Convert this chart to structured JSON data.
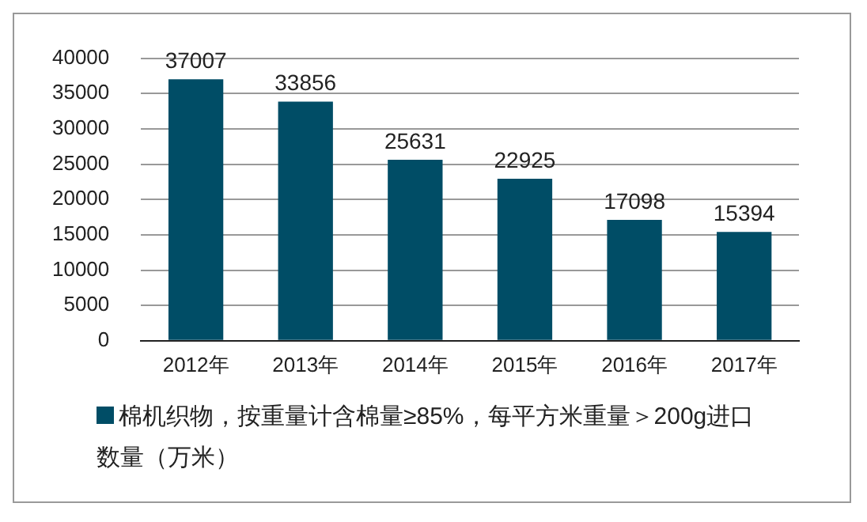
{
  "chart_data": {
    "type": "bar",
    "categories": [
      "2012年",
      "2013年",
      "2014年",
      "2015年",
      "2016年",
      "2017年"
    ],
    "series": [
      {
        "name": "棉机织物，按重量计含棉量≥85%，每平方米重量＞200g进口数量（万米）",
        "color": "#004d66",
        "values": [
          37007,
          33856,
          25631,
          22925,
          17098,
          15394
        ]
      }
    ],
    "ylim": [
      0,
      40000
    ],
    "yticks": [
      0,
      5000,
      10000,
      15000,
      20000,
      25000,
      30000,
      35000,
      40000
    ],
    "grid": "y",
    "legend": "bottom",
    "data_labels": true
  }
}
